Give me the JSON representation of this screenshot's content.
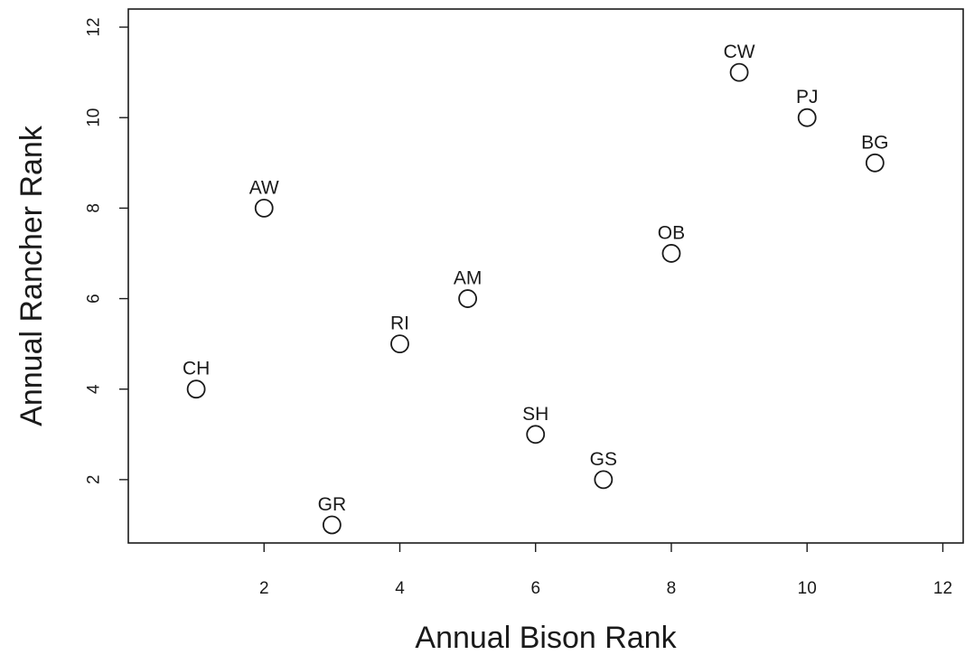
{
  "chart_data": {
    "type": "scatter",
    "xlabel": "Annual Bison Rank",
    "ylabel": "Annual Rancher Rank",
    "xlim": [
      0.0,
      12.3
    ],
    "ylim": [
      0.6,
      12.4
    ],
    "x_ticks": [
      2,
      4,
      6,
      8,
      10,
      12
    ],
    "y_ticks": [
      2,
      4,
      6,
      8,
      10,
      12
    ],
    "grid": false,
    "marker": "open-circle",
    "points": [
      {
        "label": "CH",
        "x": 1,
        "y": 4
      },
      {
        "label": "AW",
        "x": 2,
        "y": 8
      },
      {
        "label": "GR",
        "x": 3,
        "y": 1
      },
      {
        "label": "RI",
        "x": 4,
        "y": 5
      },
      {
        "label": "AM",
        "x": 5,
        "y": 6
      },
      {
        "label": "SH",
        "x": 6,
        "y": 3
      },
      {
        "label": "GS",
        "x": 7,
        "y": 2
      },
      {
        "label": "OB",
        "x": 8,
        "y": 7
      },
      {
        "label": "CW",
        "x": 9,
        "y": 11
      },
      {
        "label": "PJ",
        "x": 10,
        "y": 10
      },
      {
        "label": "BG",
        "x": 11,
        "y": 9
      }
    ]
  }
}
